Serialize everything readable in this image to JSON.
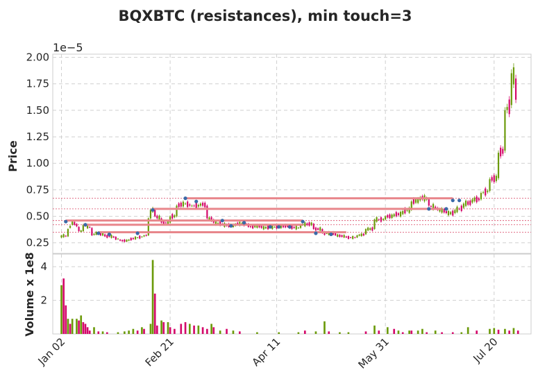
{
  "chart_data": {
    "type": "candlestick",
    "title": "BQXBTC (resistances), min touch=3",
    "price_panel": {
      "ylabel": "Price",
      "offset_label": "1e−5",
      "ylim": [
        0.15,
        2.03
      ],
      "yticks": [
        "0.25",
        "0.50",
        "0.75",
        "1.00",
        "1.25",
        "1.50",
        "1.75",
        "2.00"
      ],
      "ytick_values": [
        0.25,
        0.5,
        0.75,
        1.0,
        1.25,
        1.5,
        1.75,
        2.0
      ],
      "grid": true
    },
    "volume_panel": {
      "ylabel": "Volume x 1e8",
      "ylim": [
        0,
        4.75
      ],
      "yticks": [
        "2",
        "4"
      ],
      "ytick_values": [
        2,
        4
      ],
      "grid": true
    },
    "xlim": [
      -4,
      216
    ],
    "xticks": [
      "Jan 02",
      "Feb 21",
      "Apr 11",
      "May 31",
      "Jul 20"
    ],
    "xtick_index": [
      0,
      50,
      99,
      149,
      199
    ],
    "colors": {
      "up": "#6b9a0a",
      "down": "#d4086a",
      "resistance": "#e8868b",
      "touch": "#3a6aa8",
      "level_line": "#d94464"
    },
    "candles_anchor": [
      [
        0,
        0.3,
        0.32
      ],
      [
        3,
        0.31,
        0.38
      ],
      [
        5,
        0.42,
        0.45
      ],
      [
        8,
        0.4,
        0.36
      ],
      [
        10,
        0.36,
        0.42
      ],
      [
        14,
        0.39,
        0.32
      ],
      [
        17,
        0.35,
        0.33
      ],
      [
        20,
        0.33,
        0.31
      ],
      [
        24,
        0.31,
        0.3
      ],
      [
        27,
        0.28,
        0.27
      ],
      [
        31,
        0.27,
        0.28
      ],
      [
        35,
        0.3,
        0.3
      ],
      [
        38,
        0.31,
        0.32
      ],
      [
        40,
        0.32,
        0.48
      ],
      [
        41,
        0.48,
        0.56
      ],
      [
        43,
        0.56,
        0.5
      ],
      [
        46,
        0.48,
        0.44
      ],
      [
        50,
        0.44,
        0.5
      ],
      [
        53,
        0.5,
        0.6
      ],
      [
        57,
        0.62,
        0.62
      ],
      [
        60,
        0.6,
        0.6
      ],
      [
        64,
        0.6,
        0.62
      ],
      [
        67,
        0.6,
        0.48
      ],
      [
        70,
        0.47,
        0.44
      ],
      [
        74,
        0.43,
        0.42
      ],
      [
        80,
        0.41,
        0.43
      ],
      [
        86,
        0.43,
        0.4
      ],
      [
        92,
        0.41,
        0.39
      ],
      [
        98,
        0.4,
        0.4
      ],
      [
        104,
        0.41,
        0.4
      ],
      [
        110,
        0.39,
        0.42
      ],
      [
        116,
        0.43,
        0.38
      ],
      [
        120,
        0.38,
        0.34
      ],
      [
        126,
        0.34,
        0.32
      ],
      [
        131,
        0.31,
        0.3
      ],
      [
        136,
        0.3,
        0.32
      ],
      [
        140,
        0.33,
        0.38
      ],
      [
        144,
        0.38,
        0.47
      ],
      [
        149,
        0.47,
        0.5
      ],
      [
        153,
        0.5,
        0.52
      ],
      [
        157,
        0.52,
        0.55
      ],
      [
        161,
        0.56,
        0.64
      ],
      [
        165,
        0.65,
        0.68
      ],
      [
        169,
        0.66,
        0.6
      ],
      [
        173,
        0.58,
        0.56
      ],
      [
        177,
        0.55,
        0.53
      ],
      [
        181,
        0.53,
        0.56
      ],
      [
        185,
        0.58,
        0.62
      ],
      [
        189,
        0.63,
        0.66
      ],
      [
        193,
        0.66,
        0.72
      ],
      [
        197,
        0.74,
        0.85
      ],
      [
        201,
        0.86,
        1.1
      ],
      [
        204,
        1.12,
        1.5
      ],
      [
        207,
        1.55,
        1.85
      ],
      [
        209,
        1.8,
        1.6
      ]
    ],
    "resistance_levels": [
      {
        "level": 0.67,
        "x0": 57,
        "x1": 180
      },
      {
        "level": 0.57,
        "x0": 42,
        "x1": 175
      },
      {
        "level": 0.46,
        "x0": 2,
        "x1": 111
      },
      {
        "level": 0.42,
        "x0": 10,
        "x1": 111
      },
      {
        "level": 0.35,
        "x0": 17,
        "x1": 131
      }
    ],
    "touch_points": [
      [
        2,
        0.45
      ],
      [
        11,
        0.42
      ],
      [
        17,
        0.34
      ],
      [
        22,
        0.33
      ],
      [
        35,
        0.34
      ],
      [
        42,
        0.56
      ],
      [
        57,
        0.67
      ],
      [
        62,
        0.64
      ],
      [
        74,
        0.46
      ],
      [
        78,
        0.41
      ],
      [
        84,
        0.44
      ],
      [
        96,
        0.4
      ],
      [
        100,
        0.4
      ],
      [
        105,
        0.4
      ],
      [
        111,
        0.45
      ],
      [
        117,
        0.34
      ],
      [
        124,
        0.33
      ],
      [
        169,
        0.57
      ],
      [
        177,
        0.57
      ],
      [
        180,
        0.65
      ],
      [
        183,
        0.65
      ]
    ],
    "volume_bars": [
      [
        0,
        2.9,
        "up"
      ],
      [
        1,
        3.3,
        "down"
      ],
      [
        2,
        1.7,
        "down"
      ],
      [
        3,
        0.9,
        "up"
      ],
      [
        4,
        0.6,
        "down"
      ],
      [
        5,
        0.9,
        "up"
      ],
      [
        7,
        0.9,
        "up"
      ],
      [
        8,
        0.8,
        "down"
      ],
      [
        9,
        1.1,
        "up"
      ],
      [
        10,
        0.7,
        "down"
      ],
      [
        11,
        0.6,
        "down"
      ],
      [
        12,
        0.4,
        "down"
      ],
      [
        13,
        0.2,
        "down"
      ],
      [
        15,
        0.4,
        "up"
      ],
      [
        17,
        0.15,
        "down"
      ],
      [
        19,
        0.15,
        "up"
      ],
      [
        21,
        0.1,
        "down"
      ],
      [
        26,
        0.1,
        "up"
      ],
      [
        29,
        0.15,
        "up"
      ],
      [
        31,
        0.2,
        "up"
      ],
      [
        33,
        0.3,
        "up"
      ],
      [
        35,
        0.2,
        "down"
      ],
      [
        37,
        0.4,
        "up"
      ],
      [
        38,
        0.3,
        "down"
      ],
      [
        41,
        0.6,
        "up"
      ],
      [
        42,
        4.4,
        "up"
      ],
      [
        43,
        2.4,
        "down"
      ],
      [
        44,
        0.5,
        "down"
      ],
      [
        46,
        0.8,
        "up"
      ],
      [
        47,
        0.7,
        "down"
      ],
      [
        49,
        0.7,
        "up"
      ],
      [
        50,
        0.4,
        "down"
      ],
      [
        52,
        0.3,
        "down"
      ],
      [
        55,
        0.6,
        "down"
      ],
      [
        57,
        0.7,
        "down"
      ],
      [
        59,
        0.6,
        "up"
      ],
      [
        61,
        0.5,
        "down"
      ],
      [
        63,
        0.5,
        "up"
      ],
      [
        65,
        0.4,
        "down"
      ],
      [
        67,
        0.3,
        "down"
      ],
      [
        69,
        0.6,
        "up"
      ],
      [
        70,
        0.4,
        "down"
      ],
      [
        73,
        0.2,
        "up"
      ],
      [
        76,
        0.3,
        "down"
      ],
      [
        79,
        0.2,
        "up"
      ],
      [
        82,
        0.15,
        "down"
      ],
      [
        90,
        0.1,
        "up"
      ],
      [
        100,
        0.1,
        "up"
      ],
      [
        109,
        0.1,
        "up"
      ],
      [
        112,
        0.2,
        "down"
      ],
      [
        117,
        0.15,
        "up"
      ],
      [
        121,
        0.75,
        "up"
      ],
      [
        123,
        0.15,
        "down"
      ],
      [
        128,
        0.1,
        "up"
      ],
      [
        132,
        0.1,
        "up"
      ],
      [
        140,
        0.15,
        "down"
      ],
      [
        144,
        0.5,
        "up"
      ],
      [
        146,
        0.2,
        "down"
      ],
      [
        150,
        0.4,
        "up"
      ],
      [
        153,
        0.3,
        "down"
      ],
      [
        155,
        0.2,
        "up"
      ],
      [
        157,
        0.1,
        "down"
      ],
      [
        160,
        0.2,
        "up"
      ],
      [
        161,
        0.2,
        "down"
      ],
      [
        164,
        0.2,
        "up"
      ],
      [
        166,
        0.3,
        "up"
      ],
      [
        168,
        0.1,
        "down"
      ],
      [
        172,
        0.2,
        "up"
      ],
      [
        175,
        0.1,
        "down"
      ],
      [
        180,
        0.1,
        "down"
      ],
      [
        184,
        0.1,
        "up"
      ],
      [
        187,
        0.4,
        "up"
      ],
      [
        191,
        0.2,
        "down"
      ],
      [
        197,
        0.3,
        "up"
      ],
      [
        199,
        0.35,
        "up"
      ],
      [
        201,
        0.25,
        "down"
      ],
      [
        204,
        0.3,
        "up"
      ],
      [
        206,
        0.2,
        "down"
      ],
      [
        208,
        0.35,
        "up"
      ],
      [
        210,
        0.2,
        "down"
      ]
    ]
  }
}
